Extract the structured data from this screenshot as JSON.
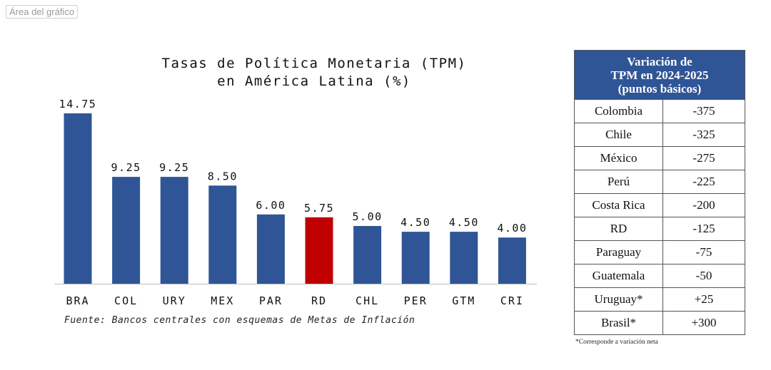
{
  "area_label": "Área del gráfico",
  "chart_data": {
    "type": "bar",
    "title_lines": [
      "Tasas de Política Monetaria (TPM)",
      "en América Latina (%)"
    ],
    "categories": [
      "BRA",
      "COL",
      "URY",
      "MEX",
      "PAR",
      "RD",
      "CHL",
      "PER",
      "GTM",
      "CRI"
    ],
    "values": [
      14.75,
      9.25,
      9.25,
      8.5,
      6.0,
      5.75,
      5.0,
      4.5,
      4.5,
      4.0
    ],
    "value_labels": [
      "14.75",
      "9.25",
      "9.25",
      "8.50",
      "6.00",
      "5.75",
      "5.00",
      "4.50",
      "4.50",
      "4.00"
    ],
    "highlight_category": "RD",
    "colors": {
      "default": "#2f5597",
      "highlight": "#c00000"
    },
    "ylim": [
      0,
      15
    ],
    "grid": false,
    "source": "Fuente: Bancos centrales con esquemas de Metas de Inflación"
  },
  "table": {
    "header": "Variación de\nTPM en 2024-2025\n(puntos básicos)",
    "rows": [
      {
        "country": "Colombia",
        "value": "-375"
      },
      {
        "country": "Chile",
        "value": "-325"
      },
      {
        "country": "México",
        "value": "-275"
      },
      {
        "country": "Perú",
        "value": "-225"
      },
      {
        "country": "Costa Rica",
        "value": "-200"
      },
      {
        "country": "RD",
        "value": "-125"
      },
      {
        "country": "Paraguay",
        "value": "-75"
      },
      {
        "country": "Guatemala",
        "value": "-50"
      },
      {
        "country": "Uruguay*",
        "value": "+25"
      },
      {
        "country": "Brasil*",
        "value": "+300"
      }
    ],
    "note": "*Corresponde a variación neta"
  }
}
